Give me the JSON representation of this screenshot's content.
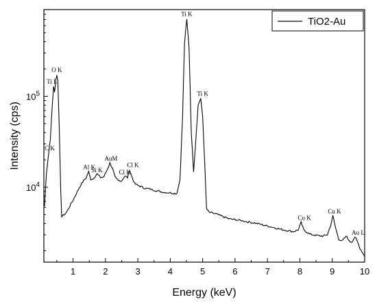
{
  "chart_data": {
    "type": "line",
    "xlabel": "Energy (keV)",
    "ylabel": "Intensity (cps)",
    "xlim": [
      0.1,
      10
    ],
    "ylim": [
      1500,
      900000
    ],
    "yscale": "log",
    "x_ticks": [
      1,
      2,
      3,
      4,
      5,
      6,
      7,
      8,
      9,
      10
    ],
    "y_ticks": [
      {
        "value": 10000,
        "base": "10",
        "exp": "4"
      },
      {
        "value": 100000,
        "base": "10",
        "exp": "5"
      }
    ],
    "grid": false,
    "legend_position": "top-right",
    "series": [
      {
        "name": "TiO2-Au",
        "color": "#000000",
        "points": [
          [
            0.12,
            6200
          ],
          [
            0.18,
            14500
          ],
          [
            0.25,
            24000
          ],
          [
            0.3,
            34000
          ],
          [
            0.35,
            70000
          ],
          [
            0.4,
            130000
          ],
          [
            0.43,
            110000
          ],
          [
            0.47,
            155000
          ],
          [
            0.5,
            170000
          ],
          [
            0.53,
            150000
          ],
          [
            0.58,
            40000
          ],
          [
            0.62,
            9000
          ],
          [
            0.65,
            4800
          ],
          [
            0.7,
            4900
          ],
          [
            0.8,
            5300
          ],
          [
            0.9,
            6200
          ],
          [
            1.0,
            7200
          ],
          [
            1.1,
            8500
          ],
          [
            1.2,
            10000
          ],
          [
            1.3,
            11500
          ],
          [
            1.4,
            12600
          ],
          [
            1.48,
            14800
          ],
          [
            1.55,
            12200
          ],
          [
            1.62,
            12400
          ],
          [
            1.74,
            14000
          ],
          [
            1.85,
            12800
          ],
          [
            1.95,
            13000
          ],
          [
            2.05,
            15500
          ],
          [
            2.14,
            18500
          ],
          [
            2.22,
            16000
          ],
          [
            2.3,
            12800
          ],
          [
            2.4,
            11800
          ],
          [
            2.5,
            11800
          ],
          [
            2.6,
            13300
          ],
          [
            2.68,
            12800
          ],
          [
            2.75,
            15500
          ],
          [
            2.8,
            13500
          ],
          [
            2.9,
            11000
          ],
          [
            3.0,
            10500
          ],
          [
            3.2,
            9800
          ],
          [
            3.4,
            9500
          ],
          [
            3.6,
            9100
          ],
          [
            3.8,
            8800
          ],
          [
            4.0,
            8700
          ],
          [
            4.2,
            8500
          ],
          [
            4.3,
            12000
          ],
          [
            4.38,
            60000
          ],
          [
            4.44,
            380000
          ],
          [
            4.51,
            700000
          ],
          [
            4.58,
            350000
          ],
          [
            4.65,
            40000
          ],
          [
            4.72,
            15000
          ],
          [
            4.78,
            30000
          ],
          [
            4.86,
            80000
          ],
          [
            4.94,
            95000
          ],
          [
            5.0,
            60000
          ],
          [
            5.06,
            20000
          ],
          [
            5.12,
            5800
          ],
          [
            5.2,
            5300
          ],
          [
            5.4,
            5100
          ],
          [
            5.6,
            4800
          ],
          [
            5.8,
            4500
          ],
          [
            6.0,
            4400
          ],
          [
            6.2,
            4300
          ],
          [
            6.4,
            4150
          ],
          [
            6.6,
            4050
          ],
          [
            6.8,
            3900
          ],
          [
            7.0,
            3750
          ],
          [
            7.2,
            3600
          ],
          [
            7.4,
            3450
          ],
          [
            7.6,
            3350
          ],
          [
            7.8,
            3250
          ],
          [
            7.95,
            3400
          ],
          [
            8.04,
            4100
          ],
          [
            8.12,
            3400
          ],
          [
            8.3,
            3050
          ],
          [
            8.5,
            2950
          ],
          [
            8.7,
            2900
          ],
          [
            8.85,
            3000
          ],
          [
            8.95,
            3800
          ],
          [
            9.02,
            4850
          ],
          [
            9.1,
            3600
          ],
          [
            9.2,
            2700
          ],
          [
            9.3,
            2550
          ],
          [
            9.4,
            2800
          ],
          [
            9.45,
            2900
          ],
          [
            9.52,
            2550
          ],
          [
            9.6,
            2500
          ],
          [
            9.7,
            2850
          ],
          [
            9.78,
            2500
          ],
          [
            9.85,
            2150
          ],
          [
            9.92,
            1950
          ],
          [
            10.0,
            1750
          ]
        ]
      }
    ],
    "annotations": [
      {
        "text": "Ti K",
        "x": 4.51,
        "y": 760000
      },
      {
        "text": "Ti K",
        "x": 5.0,
        "y": 102000
      },
      {
        "text": "O K",
        "x": 0.5,
        "y": 185000
      },
      {
        "text": "Ti L",
        "x": 0.35,
        "y": 138000
      },
      {
        "text": "C K",
        "x": 0.28,
        "y": 25500
      },
      {
        "text": "Al K",
        "x": 1.5,
        "y": 15800
      },
      {
        "text": "Si K",
        "x": 1.74,
        "y": 14600
      },
      {
        "text": "AuM",
        "x": 2.17,
        "y": 19600
      },
      {
        "text": "Cl K",
        "x": 2.6,
        "y": 13900
      },
      {
        "text": "Cl K",
        "x": 2.85,
        "y": 16700
      },
      {
        "text": "Cu K",
        "x": 8.14,
        "y": 4350
      },
      {
        "text": "Cu K",
        "x": 9.07,
        "y": 5150
      },
      {
        "text": "Au L",
        "x": 9.8,
        "y": 3000
      }
    ]
  }
}
